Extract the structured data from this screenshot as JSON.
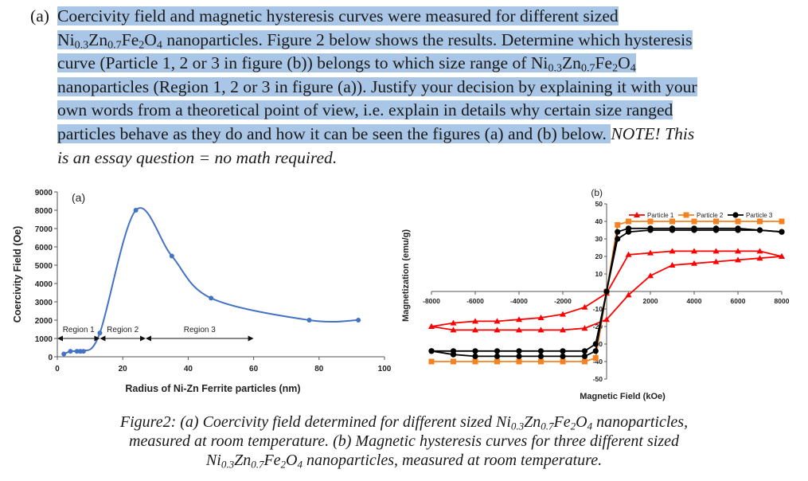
{
  "question": {
    "label": "(a)",
    "lines": [
      [
        "Coercivity field and magnetic hysteresis curves were measured for different sized"
      ],
      [
        "Ni",
        "0.3",
        "Zn",
        "0.7",
        "Fe",
        "2",
        "O",
        "4",
        " nanoparticles. Figure 2 below shows the results. Determine which hysteresis"
      ],
      [
        "curve (Particle 1, 2 or 3 in figure (b)) belongs to which size range of Ni",
        "0.3",
        "Zn",
        "0.7",
        "Fe",
        "2",
        "O",
        "4"
      ],
      [
        "nanoparticles (Region 1, 2 or 3 in figure (a)). Justify your decision by explaining it with your"
      ],
      [
        "own words from a theoretical point of view, i.e. explain in details why certain size ranged"
      ],
      [
        "particles behave as they do and how it can be seen the figures (a) and (b) below. "
      ]
    ],
    "note_inline": "NOTE! This",
    "note_line2": "is an essay question = no math required."
  },
  "chart_data": [
    {
      "type": "line",
      "panel_label": "(a)",
      "xlabel": "Radius of Ni-Zn Ferrite particles (nm)",
      "ylabel": "Coercivity Field (Oe)",
      "xlim": [
        0,
        100
      ],
      "ylim": [
        0,
        9000
      ],
      "xticks": [
        0,
        20,
        40,
        60,
        80,
        100
      ],
      "yticks": [
        0,
        1000,
        2000,
        3000,
        4000,
        5000,
        6000,
        7000,
        8000,
        9000
      ],
      "series": [
        {
          "color": "#4472c4",
          "x": [
            2,
            4,
            6,
            7,
            8,
            13,
            24,
            35,
            47,
            77,
            92
          ],
          "y": [
            150,
            300,
            300,
            300,
            300,
            1300,
            8000,
            5500,
            3200,
            2000,
            2000
          ]
        }
      ],
      "regions": [
        {
          "label": "Region 1",
          "from": 0,
          "to": 13
        },
        {
          "label": "Region 2",
          "from": 13,
          "to": 27
        },
        {
          "label": "Region 3",
          "from": 27,
          "to": 60
        }
      ]
    },
    {
      "type": "line",
      "panel_label": "(b)",
      "xlabel": "Magnetic Field (kOe)",
      "ylabel": "Magnetization (emu/g)",
      "xlim": [
        -8000,
        8000
      ],
      "ylim": [
        -50,
        50
      ],
      "xticks": [
        -8000,
        -6000,
        -4000,
        -2000,
        0,
        2000,
        4000,
        6000,
        8000
      ],
      "yticks": [
        -50,
        -40,
        -30,
        -20,
        -10,
        0,
        10,
        20,
        30,
        40,
        50
      ],
      "legend_position": "top",
      "series": [
        {
          "name": "Particle 1",
          "color": "#ff0000",
          "marker": "triangle",
          "x": [
            -8000,
            -7000,
            -6000,
            -5000,
            -4000,
            -3000,
            -2000,
            -1000,
            0,
            1000,
            2000,
            3000,
            4000,
            5000,
            6000,
            7000,
            8000
          ],
          "y": [
            -20,
            -18,
            -17,
            -17,
            -16,
            -15,
            -13,
            -9,
            -1,
            21,
            22,
            23,
            23,
            23,
            23,
            23,
            20
          ]
        },
        {
          "name": "Particle 1",
          "color": "#ff0000",
          "marker": "triangle",
          "x": [
            -8000,
            -7000,
            -6000,
            -5000,
            -4000,
            -3000,
            -2000,
            -1000,
            0,
            1000,
            2000,
            3000,
            4000,
            5000,
            6000,
            7000,
            8000
          ],
          "y": [
            -20,
            -22,
            -22,
            -22,
            -22,
            -22,
            -22,
            -21,
            -16,
            -2,
            9,
            15,
            16,
            17,
            18,
            19,
            20
          ]
        },
        {
          "name": "Particle 2",
          "color": "#f58220",
          "marker": "square",
          "x": [
            -8000,
            -7000,
            -6000,
            -5000,
            -4000,
            -3000,
            -2000,
            -1000,
            -500,
            0,
            500,
            1000,
            2000,
            3000,
            4000,
            5000,
            6000,
            7000,
            8000
          ],
          "y": [
            -40,
            -40,
            -40,
            -40,
            -40,
            -40,
            -40,
            -40,
            -38,
            0,
            38,
            40,
            40,
            40,
            40,
            40,
            40,
            40,
            40
          ]
        },
        {
          "name": "Particle 3",
          "color": "#000000",
          "marker": "circle",
          "x": [
            -8000,
            -7000,
            -6000,
            -5000,
            -4000,
            -3000,
            -2000,
            -1000,
            -500,
            0,
            500,
            1000,
            2000,
            3000,
            4000,
            5000,
            6000,
            7000,
            8000
          ],
          "y": [
            -34,
            -34,
            -34,
            -34,
            -34,
            -34,
            -34,
            -34,
            -30,
            0,
            30,
            34,
            35,
            35,
            35,
            35,
            35,
            35,
            34
          ]
        },
        {
          "name": "Particle 3",
          "color": "#000000",
          "marker": "circle",
          "x": [
            -8000,
            -7000,
            -6000,
            -5000,
            -4000,
            -3000,
            -2000,
            -1000,
            -500,
            0,
            500,
            1000,
            2000,
            3000,
            4000,
            5000,
            6000,
            7000,
            8000
          ],
          "y": [
            -34,
            -36,
            -37,
            -37,
            -37,
            -37,
            -37,
            -37,
            -34,
            0,
            34,
            36,
            36,
            36,
            36,
            36,
            36,
            35,
            34
          ]
        }
      ],
      "legend": [
        "Particle 1",
        "Particle 2",
        "Particle 3"
      ]
    }
  ],
  "caption": {
    "line1": [
      "Figure2: (a) Coercivity field determined for different sized Ni",
      "0.3",
      "Zn",
      "0.7",
      "Fe",
      "2",
      "O",
      "4",
      " nanoparticles,"
    ],
    "line2": "measured at room temperature. (b) Magnetic hysteresis curves for three different sized",
    "line3": [
      "Ni",
      "0.3",
      "Zn",
      "0.7",
      "Fe",
      "2",
      "O",
      "4",
      " nanoparticles, measured at room temperature."
    ]
  }
}
